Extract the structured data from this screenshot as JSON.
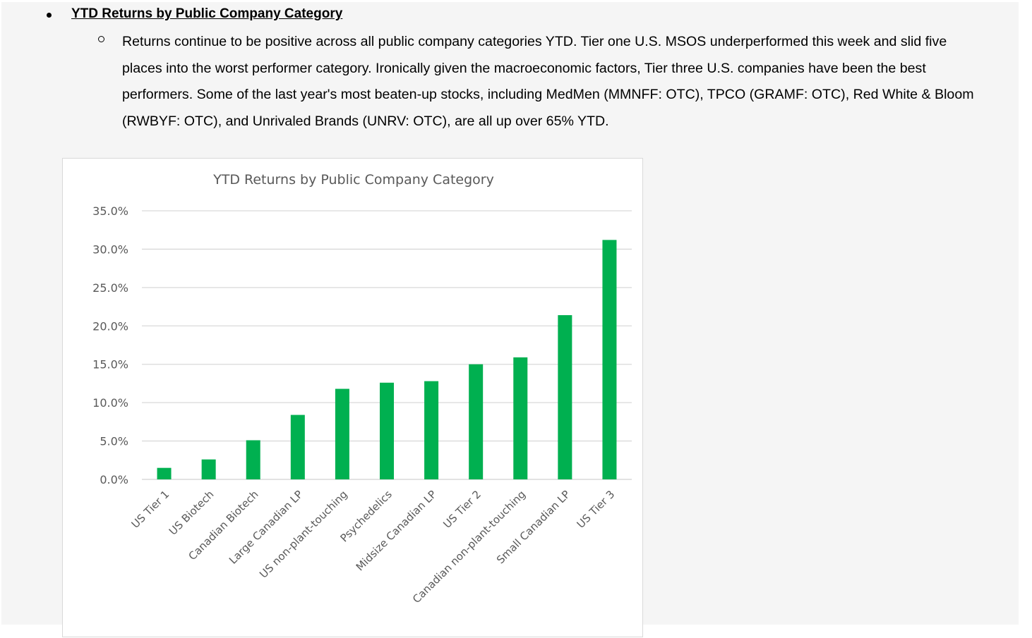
{
  "section": {
    "heading": "YTD Returns by Public Company Category",
    "paragraph": "Returns continue to be positive across all public company categories YTD. Tier one U.S. MSOS underperformed this week and slid five places into the worst performer category. Ironically given the macroeconomic factors, Tier three U.S. companies have been the best performers. Some of the last year's most beaten-up stocks, including MedMen (MMNFF: OTC), TPCO (GRAMF: OTC), Red White & Bloom (RWBYF: OTC), and Unrivaled Brands (UNRV: OTC), are all up over 65% YTD."
  },
  "chart_data": {
    "type": "bar",
    "title": "YTD Returns by Public Company Category",
    "categories": [
      "US Tier 1",
      "US Biotech",
      "Canadian Biotech",
      "Large Canadian LP",
      "US non-plant-touching",
      "Psychedelics",
      "Midsize Canadian LP",
      "US Tier 2",
      "Canadian non-plant-touching",
      "Small Canadian LP",
      "US Tier 3"
    ],
    "values": [
      0.015,
      0.026,
      0.051,
      0.084,
      0.118,
      0.126,
      0.128,
      0.15,
      0.159,
      0.214,
      0.312
    ],
    "ylim": [
      0,
      0.35
    ],
    "yticks": [
      0,
      0.05,
      0.1,
      0.15,
      0.2,
      0.25,
      0.3,
      0.35
    ],
    "ytick_labels": [
      "0.0%",
      "5.0%",
      "10.0%",
      "15.0%",
      "20.0%",
      "25.0%",
      "30.0%",
      "35.0%"
    ],
    "bar_color": "#00b050",
    "grid": true,
    "xlabel": "",
    "ylabel": ""
  }
}
